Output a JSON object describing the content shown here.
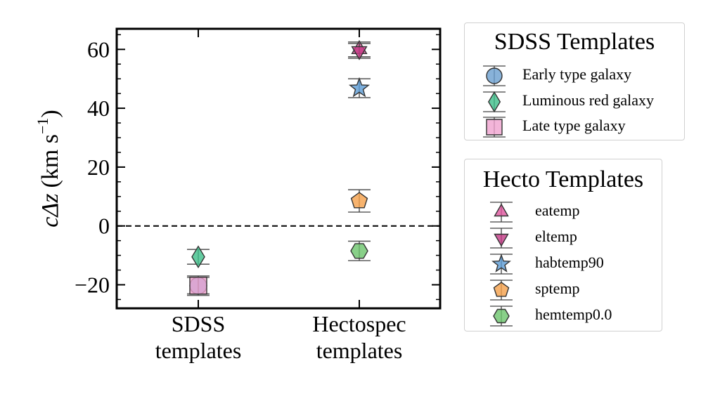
{
  "chart_data": {
    "type": "scatter",
    "title": "",
    "xlabel": "",
    "ylabel_main": "cΔz",
    "ylabel_unit": "(km s",
    "ylabel_exp": "−1",
    "ylabel_close": ")",
    "categories": [
      {
        "line1": "SDSS",
        "line2": "templates"
      },
      {
        "line1": "Hectospec",
        "line2": "templates"
      }
    ],
    "ylim": [
      -28,
      67
    ],
    "yticks": [
      {
        "value": -20,
        "label": "−20"
      },
      {
        "value": 0,
        "label": "0"
      },
      {
        "value": 20,
        "label": "20"
      },
      {
        "value": 40,
        "label": "40"
      },
      {
        "value": 60,
        "label": "60"
      }
    ],
    "reference_line": {
      "y": 0,
      "style": "dashed"
    },
    "series": [
      {
        "name": "Early type galaxy",
        "group": "SDSS Templates",
        "category": 0,
        "y": -20.3,
        "err": 2.8,
        "marker": "circle",
        "color": "#6a9fd0"
      },
      {
        "name": "Luminous red galaxy",
        "group": "SDSS Templates",
        "category": 0,
        "y": -10.5,
        "err": 2.5,
        "marker": "diamond",
        "color": "#3dbf8a"
      },
      {
        "name": "Late type galaxy",
        "group": "SDSS Templates",
        "category": 0,
        "y": -20.3,
        "err": 3.3,
        "marker": "square",
        "color": "#f0a3cf"
      },
      {
        "name": "eatemp",
        "group": "Hecto Templates",
        "category": 1,
        "y": 60.0,
        "err": 2.5,
        "marker": "triangle-up",
        "color": "#e0559e"
      },
      {
        "name": "eltemp",
        "group": "Hecto Templates",
        "category": 1,
        "y": 59.5,
        "err": 2.5,
        "marker": "triangle-down",
        "color": "#c43a86"
      },
      {
        "name": "habtemp90",
        "group": "Hecto Templates",
        "category": 1,
        "y": 46.8,
        "err": 3.2,
        "marker": "star",
        "color": "#5b9bd5"
      },
      {
        "name": "sptemp",
        "group": "Hecto Templates",
        "category": 1,
        "y": 8.5,
        "err": 3.8,
        "marker": "pentagon",
        "color": "#f5a04a"
      },
      {
        "name": "hemtemp0.0",
        "group": "Hecto Templates",
        "category": 1,
        "y": -8.5,
        "err": 3.3,
        "marker": "hexagon",
        "color": "#6cc46c"
      }
    ],
    "legends": [
      {
        "title": "SDSS Templates",
        "placement": "right-upper",
        "entries": [
          "Early type galaxy",
          "Luminous red galaxy",
          "Late type galaxy"
        ]
      },
      {
        "title": "Hecto Templates",
        "placement": "right-lower",
        "entries": [
          "eatemp",
          "eltemp",
          "habtemp90",
          "sptemp",
          "hemtemp0.0"
        ]
      }
    ],
    "grid": false
  }
}
